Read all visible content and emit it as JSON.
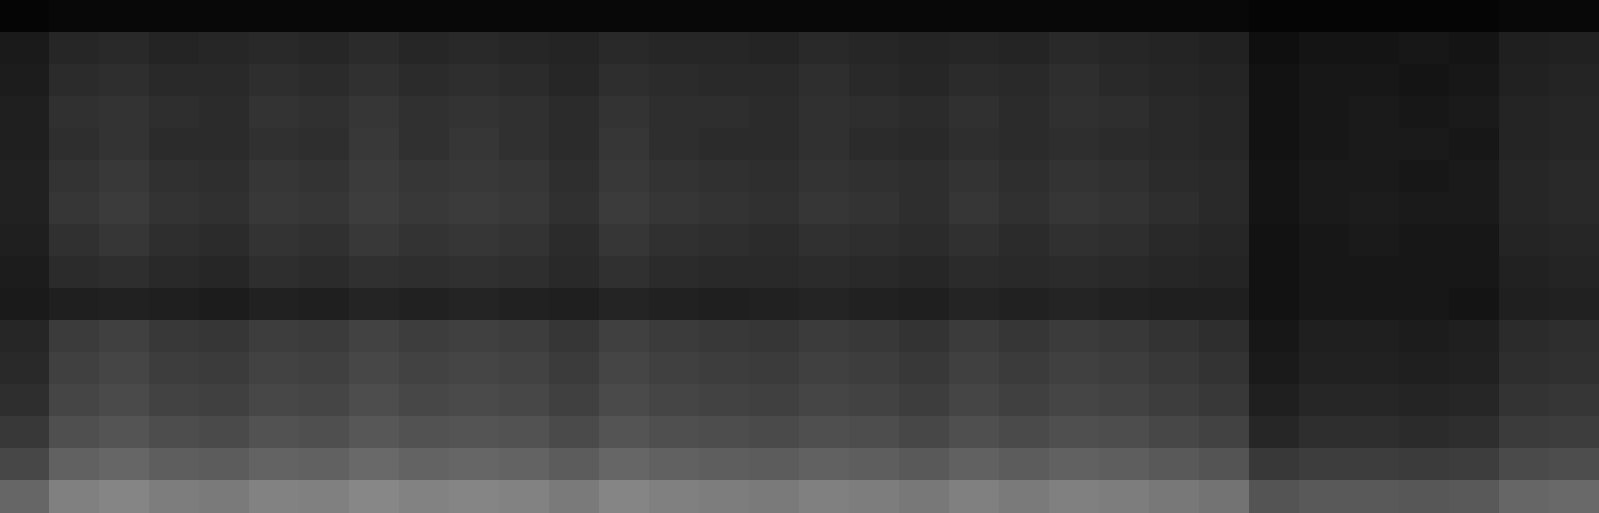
{
  "chart_data": {
    "type": "heatmap",
    "tick_labels": false,
    "color": "#ffffff",
    "zlim": [
      0,
      100
    ],
    "cells": [
      [
        2,
        3,
        3,
        3,
        3,
        3,
        3,
        3,
        3,
        3,
        3,
        3,
        3,
        3,
        3,
        3,
        3,
        3,
        3,
        3,
        3,
        3,
        3,
        3,
        3,
        2,
        2,
        2,
        2,
        2,
        3,
        3
      ],
      [
        10,
        15,
        16,
        14,
        15,
        16,
        15,
        17,
        15,
        16,
        15,
        14,
        16,
        15,
        15,
        14,
        16,
        15,
        14,
        15,
        14,
        16,
        15,
        14,
        13,
        6,
        8,
        8,
        9,
        8,
        12,
        13
      ],
      [
        11,
        17,
        18,
        16,
        16,
        18,
        17,
        19,
        17,
        18,
        17,
        15,
        18,
        17,
        16,
        16,
        18,
        16,
        15,
        17,
        16,
        18,
        16,
        15,
        14,
        7,
        9,
        9,
        8,
        9,
        13,
        14
      ],
      [
        12,
        19,
        20,
        18,
        17,
        20,
        19,
        21,
        19,
        20,
        19,
        17,
        20,
        18,
        18,
        17,
        19,
        18,
        17,
        19,
        17,
        19,
        18,
        16,
        15,
        7,
        9,
        10,
        9,
        10,
        14,
        15
      ],
      [
        12,
        18,
        20,
        17,
        17,
        19,
        18,
        22,
        19,
        21,
        19,
        17,
        21,
        18,
        17,
        17,
        19,
        17,
        16,
        18,
        17,
        18,
        17,
        16,
        15,
        7,
        9,
        10,
        10,
        9,
        14,
        15
      ],
      [
        13,
        20,
        22,
        19,
        18,
        21,
        20,
        23,
        21,
        22,
        21,
        18,
        22,
        20,
        19,
        18,
        20,
        19,
        18,
        20,
        18,
        20,
        19,
        17,
        16,
        8,
        10,
        10,
        9,
        10,
        15,
        16
      ],
      [
        13,
        21,
        23,
        20,
        19,
        22,
        21,
        24,
        22,
        23,
        22,
        19,
        23,
        21,
        20,
        19,
        21,
        20,
        18,
        21,
        19,
        21,
        20,
        18,
        16,
        8,
        10,
        11,
        10,
        10,
        15,
        16
      ],
      [
        12,
        19,
        21,
        18,
        17,
        20,
        19,
        22,
        20,
        21,
        20,
        17,
        21,
        19,
        18,
        17,
        19,
        18,
        17,
        19,
        17,
        19,
        18,
        16,
        15,
        7,
        9,
        10,
        9,
        9,
        14,
        15
      ],
      [
        11,
        17,
        18,
        16,
        15,
        18,
        17,
        19,
        18,
        19,
        18,
        16,
        19,
        17,
        16,
        16,
        17,
        16,
        15,
        17,
        16,
        17,
        16,
        15,
        14,
        7,
        9,
        9,
        9,
        9,
        13,
        14
      ],
      [
        10,
        12,
        13,
        12,
        11,
        13,
        12,
        14,
        13,
        14,
        13,
        12,
        14,
        13,
        12,
        13,
        14,
        13,
        12,
        14,
        13,
        14,
        13,
        12,
        12,
        7,
        9,
        9,
        9,
        8,
        12,
        13
      ],
      [
        15,
        23,
        25,
        22,
        21,
        24,
        23,
        26,
        24,
        25,
        24,
        21,
        25,
        23,
        22,
        21,
        23,
        22,
        20,
        23,
        21,
        23,
        22,
        20,
        18,
        9,
        12,
        12,
        11,
        12,
        17,
        18
      ],
      [
        16,
        25,
        27,
        24,
        23,
        26,
        25,
        28,
        26,
        27,
        26,
        23,
        27,
        25,
        24,
        23,
        25,
        24,
        22,
        25,
        23,
        25,
        24,
        22,
        20,
        10,
        13,
        13,
        12,
        13,
        18,
        19
      ],
      [
        18,
        27,
        29,
        26,
        25,
        28,
        27,
        30,
        28,
        29,
        28,
        25,
        29,
        27,
        26,
        25,
        27,
        26,
        24,
        27,
        25,
        27,
        26,
        24,
        22,
        12,
        15,
        15,
        14,
        15,
        20,
        21
      ],
      [
        22,
        31,
        33,
        30,
        29,
        32,
        31,
        34,
        32,
        33,
        32,
        29,
        33,
        31,
        30,
        29,
        31,
        30,
        28,
        31,
        29,
        31,
        30,
        28,
        26,
        15,
        18,
        18,
        17,
        18,
        23,
        24
      ],
      [
        28,
        38,
        40,
        37,
        36,
        39,
        38,
        41,
        39,
        40,
        39,
        36,
        40,
        38,
        37,
        36,
        38,
        37,
        35,
        38,
        36,
        38,
        37,
        35,
        33,
        22,
        24,
        24,
        23,
        24,
        29,
        30
      ],
      [
        40,
        50,
        52,
        49,
        48,
        51,
        50,
        53,
        51,
        52,
        51,
        48,
        52,
        50,
        49,
        48,
        50,
        49,
        47,
        50,
        48,
        50,
        49,
        47,
        45,
        33,
        35,
        35,
        34,
        35,
        40,
        41
      ]
    ]
  }
}
